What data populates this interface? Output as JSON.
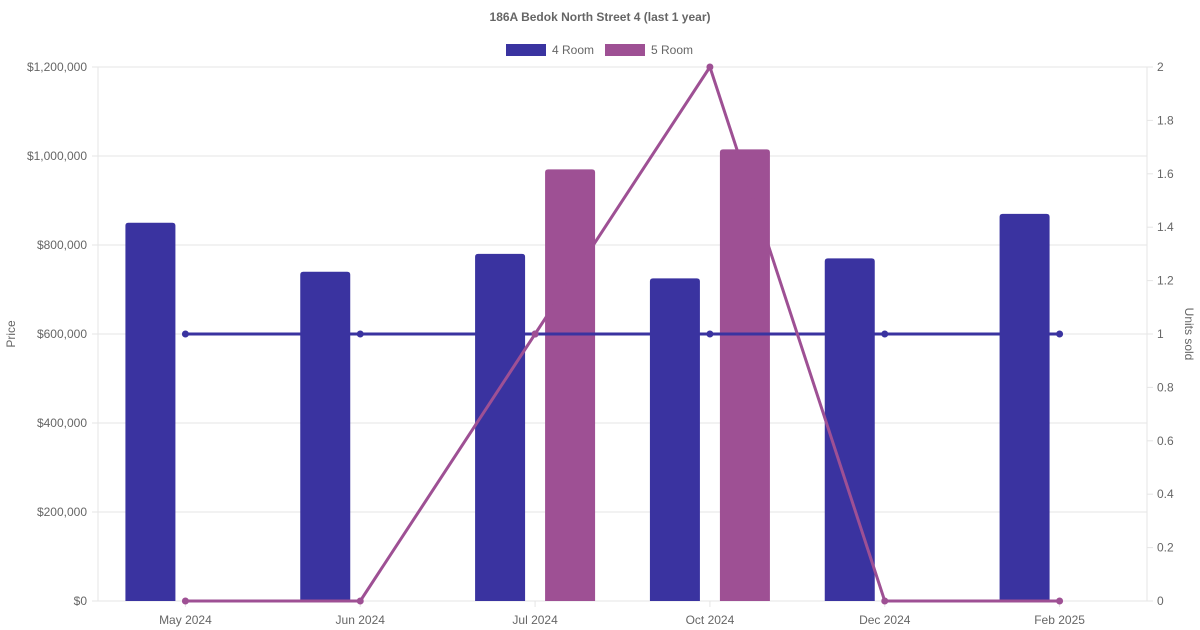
{
  "chart_data": {
    "type": "bar",
    "title": "186A Bedok North Street 4 (last 1 year)",
    "categories": [
      "May 2024",
      "Jun 2024",
      "Jul 2024",
      "Oct 2024",
      "Dec 2024",
      "Feb 2025"
    ],
    "ylabel": "Price",
    "y2label": "Units sold",
    "ylim": [
      0,
      1200000
    ],
    "y2lim": [
      0,
      2
    ],
    "yticks": [
      "$0",
      "$200,000",
      "$400,000",
      "$600,000",
      "$800,000",
      "$1,000,000",
      "$1,200,000"
    ],
    "y2ticks": [
      "0",
      "0.2",
      "0.4",
      "0.6",
      "0.8",
      "1",
      "1.2",
      "1.4",
      "1.6",
      "1.8",
      "2"
    ],
    "grid": true,
    "legend_position": "top",
    "series": [
      {
        "name": "4 Room",
        "color": "#3a33a0",
        "price": [
          850000,
          740000,
          780000,
          725000,
          770000,
          870000
        ],
        "units_sold": [
          1,
          1,
          1,
          1,
          1,
          1
        ]
      },
      {
        "name": "5 Room",
        "color": "#9e5094",
        "price": [
          null,
          null,
          970000,
          1015000,
          null,
          null
        ],
        "units_sold": [
          0,
          0,
          1,
          2,
          0,
          0
        ]
      }
    ]
  }
}
